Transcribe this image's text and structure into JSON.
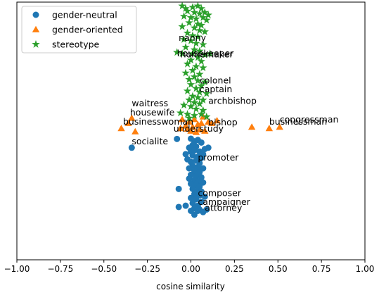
{
  "chart_data": {
    "type": "scatter",
    "title": "",
    "xlabel": "cosine similarity",
    "ylabel": "",
    "xlim": [
      -1.0,
      1.0
    ],
    "ylim": [
      -1.0,
      1.0
    ],
    "show_y_ticks": false,
    "grid": false,
    "legend": {
      "placement": "upper-left"
    },
    "x_ticks": [
      -1.0,
      -0.75,
      -0.5,
      -0.25,
      0.0,
      0.25,
      0.5,
      0.75,
      1.0
    ],
    "x_tick_labels": [
      "−1.00",
      "−0.75",
      "−0.50",
      "−0.25",
      "0.00",
      "0.25",
      "0.50",
      "0.75",
      "1.00"
    ],
    "series": [
      {
        "name": "gender-neutral",
        "marker": "circle",
        "color": "#1f77b4",
        "points": [
          [
            -0.08,
            -0.062
          ],
          [
            -0.34,
            -0.13
          ],
          [
            0.0,
            -0.06
          ],
          [
            0.02,
            -0.08
          ],
          [
            0.04,
            -0.07
          ],
          [
            0.06,
            -0.09
          ],
          [
            0.01,
            -0.11
          ],
          [
            -0.01,
            -0.13
          ],
          [
            0.03,
            -0.12
          ],
          [
            0.08,
            -0.14
          ],
          [
            0.1,
            -0.13
          ],
          [
            0.0,
            -0.16
          ],
          [
            0.02,
            -0.15
          ],
          [
            0.05,
            -0.16
          ],
          [
            0.07,
            -0.18
          ],
          [
            -0.03,
            -0.18
          ],
          [
            0.01,
            -0.19
          ],
          [
            0.04,
            -0.2
          ],
          [
            0.06,
            -0.21
          ],
          [
            -0.02,
            -0.22
          ],
          [
            0.0,
            -0.24
          ],
          [
            0.03,
            -0.23
          ],
          [
            0.05,
            -0.25
          ],
          [
            0.01,
            -0.27
          ],
          [
            0.04,
            -0.28
          ],
          [
            0.07,
            -0.29
          ],
          [
            -0.01,
            -0.29
          ],
          [
            0.02,
            -0.31
          ],
          [
            0.05,
            -0.32
          ],
          [
            0.0,
            -0.34
          ],
          [
            0.03,
            -0.35
          ],
          [
            0.06,
            -0.36
          ],
          [
            -0.01,
            -0.37
          ],
          [
            0.02,
            -0.38
          ],
          [
            0.04,
            -0.39
          ],
          [
            0.07,
            -0.4
          ],
          [
            0.0,
            -0.41
          ],
          [
            0.03,
            -0.42
          ],
          [
            0.05,
            -0.43
          ],
          [
            -0.07,
            -0.45
          ],
          [
            0.01,
            -0.45
          ],
          [
            0.04,
            -0.46
          ],
          [
            0.06,
            -0.47
          ],
          [
            0.02,
            -0.49
          ],
          [
            0.05,
            -0.5
          ],
          [
            0.08,
            -0.51
          ],
          [
            0.0,
            -0.52
          ],
          [
            0.03,
            -0.53
          ],
          [
            0.06,
            -0.55
          ],
          [
            0.01,
            -0.56
          ],
          [
            0.04,
            -0.58
          ],
          [
            -0.07,
            -0.59
          ],
          [
            -0.03,
            -0.58
          ],
          [
            0.02,
            -0.6
          ],
          [
            0.05,
            -0.61
          ],
          [
            0.09,
            -0.61
          ],
          [
            0.0,
            -0.62
          ],
          [
            0.07,
            -0.63
          ],
          [
            0.04,
            -0.62
          ],
          [
            0.02,
            -0.65
          ]
        ]
      },
      {
        "name": "gender-oriented",
        "marker": "triangle",
        "color": "#ff7f0e",
        "points": [
          [
            -0.34,
            0.1
          ],
          [
            -0.36,
            0.06
          ],
          [
            -0.4,
            0.02
          ],
          [
            -0.32,
            -0.005
          ],
          [
            -0.05,
            0.09
          ],
          [
            -0.03,
            0.04
          ],
          [
            -0.01,
            0.07
          ],
          [
            0.01,
            0.03
          ],
          [
            0.02,
            0.09
          ],
          [
            -0.02,
            0.015
          ],
          [
            0.04,
            0.05
          ],
          [
            0.05,
            0.01
          ],
          [
            0.06,
            0.06
          ],
          [
            0.08,
            0.0
          ],
          [
            0.1,
            0.07
          ],
          [
            0.12,
            0.06
          ],
          [
            0.15,
            0.08
          ],
          [
            0.0,
            0.0
          ],
          [
            0.03,
            -0.01
          ],
          [
            0.35,
            0.03
          ],
          [
            0.45,
            0.02
          ],
          [
            0.51,
            0.03
          ],
          [
            0.07,
            0.11
          ],
          [
            -0.06,
            0.02
          ]
        ]
      },
      {
        "name": "stereotype",
        "marker": "star",
        "color": "#2ca02c",
        "points": [
          [
            -0.05,
            0.97
          ],
          [
            -0.03,
            0.95
          ],
          [
            0.01,
            0.96
          ],
          [
            0.04,
            0.97
          ],
          [
            0.06,
            0.95
          ],
          [
            -0.02,
            0.93
          ],
          [
            0.02,
            0.92
          ],
          [
            0.05,
            0.91
          ],
          [
            0.08,
            0.92
          ],
          [
            -0.04,
            0.89
          ],
          [
            0.0,
            0.88
          ],
          [
            0.03,
            0.87
          ],
          [
            0.07,
            0.88
          ],
          [
            0.09,
            0.86
          ],
          [
            -0.01,
            0.84
          ],
          [
            0.04,
            0.83
          ],
          [
            0.06,
            0.82
          ],
          [
            -0.05,
            0.81
          ],
          [
            0.02,
            0.8
          ],
          [
            0.05,
            0.78
          ],
          [
            0.08,
            0.77
          ],
          [
            -0.02,
            0.76
          ],
          [
            0.01,
            0.74
          ],
          [
            0.04,
            0.73
          ],
          [
            -0.04,
            0.71
          ],
          [
            0.0,
            0.7
          ],
          [
            0.03,
            0.68
          ],
          [
            0.07,
            0.67
          ],
          [
            -0.03,
            0.65
          ],
          [
            0.02,
            0.63
          ],
          [
            0.05,
            0.62
          ],
          [
            -0.08,
            0.61
          ],
          [
            -0.05,
            0.6
          ],
          [
            0.01,
            0.6
          ],
          [
            0.08,
            0.59
          ],
          [
            0.04,
            0.57
          ],
          [
            0.0,
            0.55
          ],
          [
            0.06,
            0.54
          ],
          [
            -0.02,
            0.52
          ],
          [
            0.03,
            0.5
          ],
          [
            0.07,
            0.49
          ],
          [
            0.01,
            0.47
          ],
          [
            -0.03,
            0.45
          ],
          [
            0.05,
            0.44
          ],
          [
            0.02,
            0.42
          ],
          [
            -0.01,
            0.4
          ],
          [
            0.04,
            0.39
          ],
          [
            0.08,
            0.38
          ],
          [
            0.0,
            0.36
          ],
          [
            0.06,
            0.35
          ],
          [
            0.03,
            0.33
          ],
          [
            -0.02,
            0.31
          ],
          [
            0.05,
            0.3
          ],
          [
            0.09,
            0.29
          ],
          [
            0.01,
            0.27
          ],
          [
            0.04,
            0.26
          ],
          [
            -0.01,
            0.24
          ],
          [
            0.07,
            0.24
          ],
          [
            0.02,
            0.22
          ],
          [
            0.05,
            0.21
          ],
          [
            -0.04,
            0.2
          ],
          [
            0.0,
            0.19
          ],
          [
            0.03,
            0.17
          ],
          [
            0.07,
            0.16
          ],
          [
            -0.06,
            0.14
          ],
          [
            -0.02,
            0.13
          ],
          [
            0.02,
            0.12
          ],
          [
            0.06,
            0.13
          ],
          [
            0.09,
            0.11
          ],
          [
            -0.01,
            0.1
          ],
          [
            0.1,
            0.9
          ],
          [
            0.11,
            0.6
          ]
        ]
      }
    ],
    "annotations": [
      {
        "text": "nanny",
        "x": -0.07,
        "y": 0.7
      },
      {
        "text": "housekeeper",
        "x": -0.08,
        "y": 0.58
      },
      {
        "text": "homemaker",
        "x": -0.06,
        "y": 0.57
      },
      {
        "text": "colonel",
        "x": 0.05,
        "y": 0.37
      },
      {
        "text": "captain",
        "x": 0.05,
        "y": 0.3
      },
      {
        "text": "archbishop",
        "x": 0.1,
        "y": 0.21
      },
      {
        "text": "waitress",
        "x": -0.34,
        "y": 0.19
      },
      {
        "text": "housewife",
        "x": -0.35,
        "y": 0.12
      },
      {
        "text": "businesswoman",
        "x": -0.39,
        "y": 0.05
      },
      {
        "text": "bishop",
        "x": 0.1,
        "y": 0.045
      },
      {
        "text": "understudy",
        "x": -0.1,
        "y": -0.005
      },
      {
        "text": "congressman",
        "x": 0.51,
        "y": 0.065
      },
      {
        "text": "businessman",
        "x": 0.45,
        "y": 0.05
      },
      {
        "text": "socialite",
        "x": -0.34,
        "y": -0.105
      },
      {
        "text": "promoter",
        "x": 0.04,
        "y": -0.23
      },
      {
        "text": "composer",
        "x": 0.04,
        "y": -0.505
      },
      {
        "text": "campaigner",
        "x": 0.04,
        "y": -0.575
      },
      {
        "text": "attorney",
        "x": 0.08,
        "y": -0.62
      }
    ]
  }
}
